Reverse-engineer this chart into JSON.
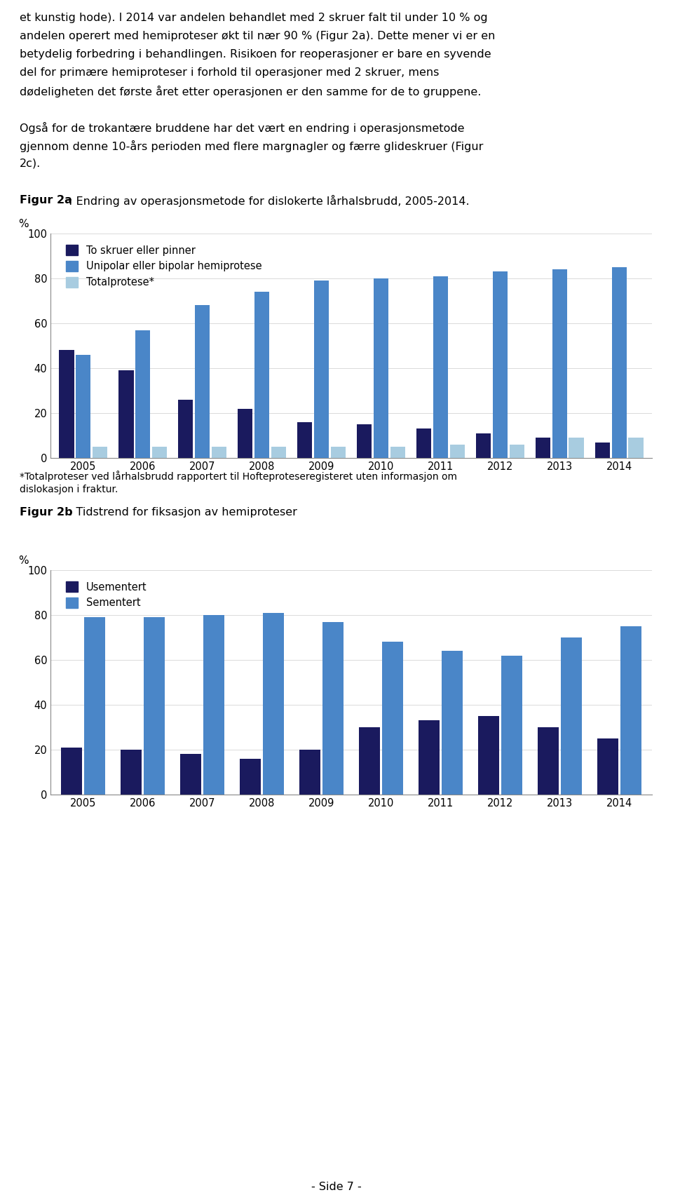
{
  "text_top": [
    "et kunstig hode). I 2014 var andelen behandlet med 2 skruer falt til under 10 % og",
    "andelen operert med hemiproteser økt til nær 90 % (Figur 2a). Dette mener vi er en",
    "betydelig forbedring i behandlingen. Risikoen for reoperasjoner er bare en syvende",
    "del for primære hemiproteser i forhold til operasjoner med 2 skruer, mens",
    "dødeligheten det første året etter operasjonen er den samme for de to gruppene."
  ],
  "text_mid": [
    "Også for de trokantære bruddene har det vært en endring i operasjonsmetode",
    "gjennom denne 10-års perioden med flere margnagler og færre glideskruer (Figur",
    "2c)."
  ],
  "fig2a_label": "Figur 2a",
  "fig2a_caption": ": Endring av operasjonsmetode for dislokerte lårhalsbrudd, 2005-2014.",
  "fig2b_label": "Figur 2b",
  "fig2b_caption": ": Tidstrend for fiksasjon av hemiproteser",
  "footnote_line1": "*Totalproteser ved lårhalsbrudd rapportert til Hofteproteseregisteret uten informasjon om",
  "footnote_line2": "dislokasjon i fraktur.",
  "page_footer": "- Side 7 -",
  "years": [
    2005,
    2006,
    2007,
    2008,
    2009,
    2010,
    2011,
    2012,
    2013,
    2014
  ],
  "chart1": {
    "series1_label": "To skruer eller pinner",
    "series2_label": "Unipolar eller bipolar hemiprotese",
    "series3_label": "Totalprotese*",
    "color1": "#1a1a5e",
    "color2": "#4a86c8",
    "color3": "#a8cce0",
    "series1": [
      48,
      39,
      26,
      22,
      16,
      15,
      13,
      11,
      9,
      7
    ],
    "series2": [
      46,
      57,
      68,
      74,
      79,
      80,
      81,
      83,
      84,
      85
    ],
    "series3": [
      5,
      5,
      5,
      5,
      5,
      5,
      6,
      6,
      9,
      9
    ],
    "ylabel": "%",
    "ylim": [
      0,
      100
    ],
    "yticks": [
      0,
      20,
      40,
      60,
      80,
      100
    ]
  },
  "chart2": {
    "series1_label": "Usementert",
    "series2_label": "Sementert",
    "color1": "#1a1a5e",
    "color2": "#4a86c8",
    "series1": [
      21,
      20,
      18,
      16,
      20,
      30,
      33,
      35,
      30,
      25
    ],
    "series2": [
      79,
      79,
      80,
      81,
      77,
      68,
      64,
      62,
      70,
      75
    ],
    "ylabel": "%",
    "ylim": [
      0,
      100
    ],
    "yticks": [
      0,
      20,
      40,
      60,
      80,
      100
    ]
  },
  "bg_color": "#ffffff",
  "text_color": "#000000",
  "font_size_body": 11.5,
  "font_size_label": 11,
  "font_size_tick": 10.5,
  "font_size_legend": 10.5,
  "font_size_footnote": 10
}
